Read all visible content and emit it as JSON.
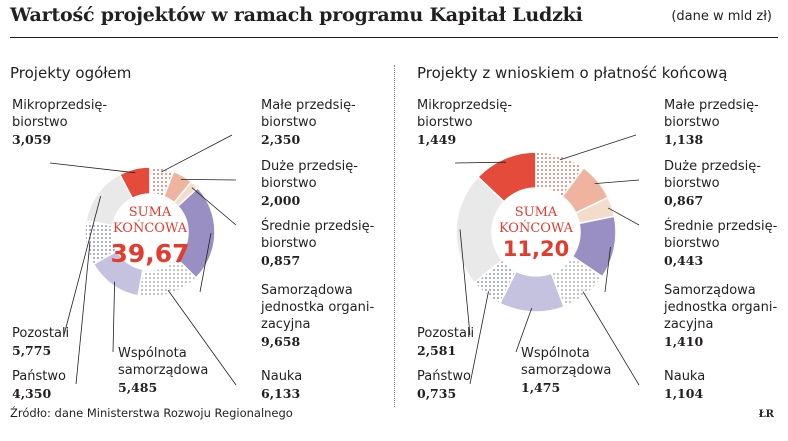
{
  "title": "Wartość projektów w ramach programu Kapitał Ludzki",
  "unit_note": "(dane w mld zł)",
  "source": "Źródło: dane Ministerstwa Rozwoju Regionalnego",
  "brand": "ŁR",
  "chart_data": [
    {
      "type": "pie",
      "title": "Projekty ogółem",
      "center_label": "SUMA KOŃCOWA",
      "center_value": "39,67",
      "categories": [
        "Mikroprzedsię- biorstwo",
        "Małe przedsię- biorstwo",
        "Duże przedsię- biorstwo",
        "Średnie przedsię- biorstwo",
        "Samorządowa jednostka organi- zacyjna",
        "Nauka",
        "Wspólnota samorządowa",
        "Państwo",
        "Pozostali"
      ],
      "values": [
        3.059,
        2.35,
        2.0,
        0.857,
        9.658,
        6.133,
        5.485,
        4.35,
        5.775
      ],
      "value_labels": [
        "3,059",
        "2,350",
        "2,000",
        "0,857",
        "9,658",
        "6,133",
        "5,485",
        "4,350",
        "5,775"
      ]
    },
    {
      "type": "pie",
      "title": "Projekty z wnioskiem o płatność końcową",
      "center_label": "SUMA KOŃCOWA",
      "center_value": "11,20",
      "categories": [
        "Mikroprzedsię- biorstwo",
        "Małe przedsię- biorstwo",
        "Duże przedsię- biorstwo",
        "Średnie przedsię- biorstwo",
        "Samorządowa jednostka organi- zacyjna",
        "Nauka",
        "Wspólnota samorządowa",
        "Państwo",
        "Pozostali"
      ],
      "values": [
        1.449,
        1.138,
        0.867,
        0.443,
        1.41,
        1.104,
        1.475,
        0.735,
        2.581
      ],
      "value_labels": [
        "1,449",
        "1,138",
        "0,867",
        "0,443",
        "1,410",
        "1,104",
        "1,475",
        "0,735",
        "2,581"
      ]
    }
  ],
  "label_lines": [
    [
      "Mikroprzedsię-",
      "biorstwo"
    ],
    [
      "Małe przedsię-",
      "biorstwo"
    ],
    [
      "Duże przedsię-",
      "biorstwo"
    ],
    [
      "Średnie przedsię-",
      "biorstwo"
    ],
    [
      "Samorządowa",
      "jednostka organi-",
      "zacyjna"
    ],
    [
      "Nauka"
    ],
    [
      "Wspólnota",
      "samorządowa"
    ],
    [
      "Państwo"
    ],
    [
      "Pozostali"
    ]
  ],
  "colors": [
    "#e44b3a",
    "#d4514a",
    "#eeb4a0",
    "#f4dccb",
    "#9a8fc3",
    "#b9b4d6",
    "#c5c2e0",
    "#9aa3cf",
    "#e9e9ea"
  ]
}
